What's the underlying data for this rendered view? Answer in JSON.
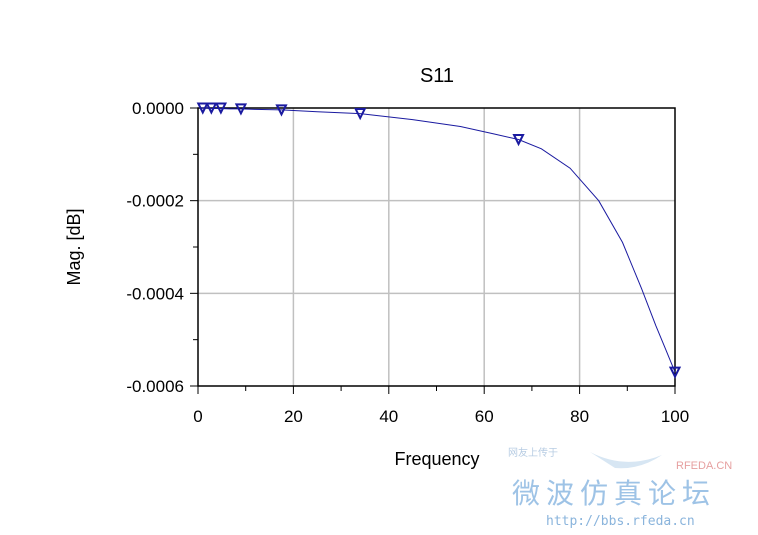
{
  "chart_data": {
    "type": "line",
    "title": "S11",
    "xlabel": "Frequency",
    "ylabel": "Mag. [dB]",
    "xlim": [
      0,
      100
    ],
    "ylim": [
      -0.0006,
      0.0
    ],
    "xticks": [
      "0",
      "20",
      "40",
      "60",
      "80",
      "100"
    ],
    "yticks": [
      "0.0000",
      "-0.0002",
      "-0.0004",
      "-0.0006"
    ],
    "xtick_values": [
      0,
      20,
      40,
      60,
      80,
      100
    ],
    "ytick_values": [
      0.0,
      -0.0002,
      -0.0004,
      -0.0006
    ],
    "grid": true,
    "series": [
      {
        "color": "#1a1aa0",
        "x": [
          0.5,
          1.0,
          1.5,
          2.2,
          3.2,
          4.6,
          6.6,
          9.0,
          12.0,
          17.5,
          25.0,
          34.0,
          45.0,
          55.0,
          62.0,
          67.2,
          72.0,
          78.0,
          84.0,
          89.0,
          93.0,
          96.0,
          98.0,
          100.0
        ],
        "y": [
          0.0,
          0.0,
          0.0,
          -5e-07,
          -1e-06,
          -1e-06,
          -2e-06,
          -2e-06,
          -3e-06,
          -4e-06,
          -8e-06,
          -1.2e-05,
          -2.5e-05,
          -4e-05,
          -5.6e-05,
          -6.8e-05,
          -8.8e-05,
          -0.00013,
          -0.0002,
          -0.00029,
          -0.00039,
          -0.00047,
          -0.00052,
          -0.00057
        ],
        "markers_x": [
          1.0,
          2.8,
          4.8,
          9.0,
          17.5,
          34.0,
          67.2,
          100.0
        ],
        "markers_y": [
          0.0,
          0.0,
          0.0,
          -2e-06,
          -4e-06,
          -1.2e-05,
          -6.8e-05,
          -0.00057
        ]
      }
    ]
  },
  "watermark": {
    "line1": "微波仿真论坛",
    "url": "http://bbs.rfeda.cn",
    "brand": "RFEDA.CN",
    "small": "网友上传于"
  },
  "colors": {
    "line": "#1a1aa0",
    "grid": "#c0c0c0",
    "axis": "#000000"
  }
}
